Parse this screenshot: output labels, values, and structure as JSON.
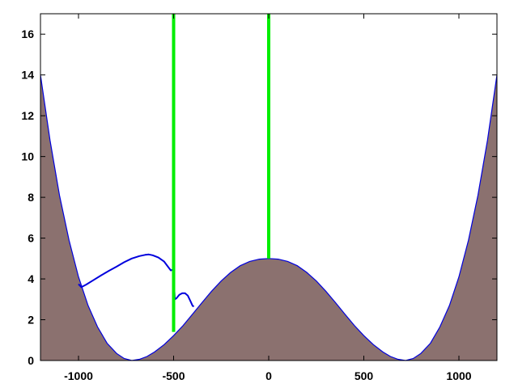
{
  "chart_data": {
    "type": "area",
    "title": "",
    "xlabel": "",
    "ylabel": "",
    "xlim": [
      -1200,
      1200
    ],
    "ylim": [
      0,
      17
    ],
    "grid": false,
    "x_ticks": [
      -1000,
      -500,
      0,
      500,
      1000
    ],
    "x_tick_labels": [
      "-1000",
      "-500",
      "0",
      "500",
      "1000"
    ],
    "y_ticks": [
      0,
      2,
      4,
      6,
      8,
      10,
      12,
      14,
      16
    ],
    "y_tick_labels": [
      "0",
      "2",
      "4",
      "6",
      "8",
      "10",
      "12",
      "14",
      "16"
    ],
    "series": [
      {
        "kind": "filled-area",
        "color": "#8b716f",
        "stroke": "#0000dd",
        "points": [
          [
            -1200,
            14.0
          ],
          [
            -1150,
            10.8
          ],
          [
            -1100,
            8.1
          ],
          [
            -1050,
            5.9
          ],
          [
            -1000,
            4.1
          ],
          [
            -950,
            2.7
          ],
          [
            -900,
            1.65
          ],
          [
            -850,
            0.85
          ],
          [
            -800,
            0.35
          ],
          [
            -760,
            0.1
          ],
          [
            -720,
            0.0
          ],
          [
            -680,
            0.06
          ],
          [
            -640,
            0.2
          ],
          [
            -600,
            0.42
          ],
          [
            -550,
            0.78
          ],
          [
            -500,
            1.22
          ],
          [
            -450,
            1.72
          ],
          [
            -400,
            2.28
          ],
          [
            -350,
            2.85
          ],
          [
            -300,
            3.4
          ],
          [
            -250,
            3.9
          ],
          [
            -200,
            4.32
          ],
          [
            -150,
            4.65
          ],
          [
            -100,
            4.86
          ],
          [
            -50,
            4.97
          ],
          [
            0,
            5.0
          ],
          [
            50,
            4.97
          ],
          [
            100,
            4.86
          ],
          [
            150,
            4.65
          ],
          [
            200,
            4.32
          ],
          [
            250,
            3.9
          ],
          [
            300,
            3.4
          ],
          [
            350,
            2.85
          ],
          [
            400,
            2.28
          ],
          [
            450,
            1.72
          ],
          [
            500,
            1.22
          ],
          [
            550,
            0.78
          ],
          [
            600,
            0.42
          ],
          [
            640,
            0.2
          ],
          [
            680,
            0.06
          ],
          [
            720,
            0.0
          ],
          [
            760,
            0.1
          ],
          [
            800,
            0.35
          ],
          [
            850,
            0.85
          ],
          [
            900,
            1.65
          ],
          [
            950,
            2.7
          ],
          [
            1000,
            4.1
          ],
          [
            1050,
            5.9
          ],
          [
            1100,
            8.1
          ],
          [
            1150,
            10.8
          ],
          [
            1200,
            14.0
          ]
        ]
      },
      {
        "kind": "line",
        "color": "#0000dd",
        "points": [
          [
            -1000,
            3.75
          ],
          [
            -985,
            3.6
          ],
          [
            -960,
            3.72
          ],
          [
            -920,
            3.95
          ],
          [
            -880,
            4.18
          ],
          [
            -840,
            4.4
          ],
          [
            -800,
            4.6
          ],
          [
            -760,
            4.82
          ],
          [
            -720,
            5.0
          ],
          [
            -680,
            5.12
          ],
          [
            -650,
            5.18
          ],
          [
            -630,
            5.2
          ],
          [
            -610,
            5.16
          ],
          [
            -580,
            5.05
          ],
          [
            -550,
            4.85
          ],
          [
            -530,
            4.6
          ],
          [
            -515,
            4.42
          ],
          [
            -505,
            4.45
          ],
          [
            -500,
            4.75
          ],
          [
            -497,
            3.6
          ],
          [
            -493,
            3.0
          ],
          [
            -485,
            3.05
          ],
          [
            -470,
            3.22
          ],
          [
            -455,
            3.3
          ],
          [
            -440,
            3.3
          ],
          [
            -425,
            3.18
          ],
          [
            -412,
            2.92
          ],
          [
            -400,
            2.68
          ],
          [
            -393,
            2.65
          ]
        ]
      },
      {
        "kind": "vertical-line",
        "color": "#00ee00",
        "x": -500,
        "y_range": [
          1.4,
          17
        ]
      },
      {
        "kind": "vertical-line",
        "color": "#00ee00",
        "x": 0,
        "y_range": [
          5.0,
          17
        ]
      }
    ]
  }
}
